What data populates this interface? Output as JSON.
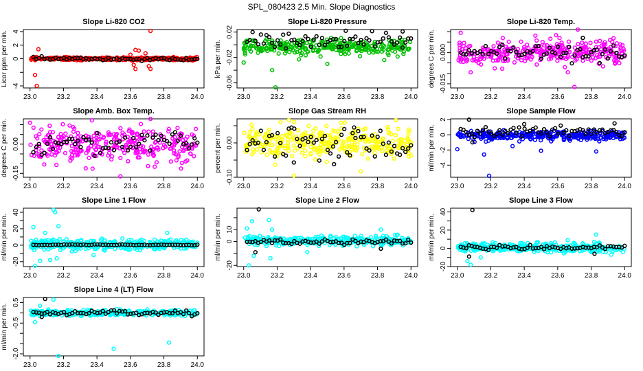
{
  "chart_data": {
    "title": "SPL_080423  2.5 Min. Slope Diagnostics",
    "type": "scatter",
    "xlim": [
      23.0,
      24.0
    ],
    "xticks": [
      "23.0",
      "23.2",
      "23.4",
      "23.6",
      "23.8",
      "24.0"
    ],
    "panels": [
      {
        "title": "Slope Li-820 CO2",
        "ylabel": "Licor ppm per min.",
        "ylim": [
          -4.3,
          4.3
        ],
        "yticks": [
          -4,
          -2,
          0,
          2,
          4
        ],
        "ytick_labels": [
          "-4",
          "",
          "0",
          "2",
          "4"
        ],
        "series": [
          {
            "name": "all",
            "color": "#ff0000",
            "center": 0,
            "spread": 0.12,
            "outliers": [
              [
                23.03,
                -2.4
              ],
              [
                23.04,
                -4.0
              ],
              [
                23.05,
                1.4
              ],
              [
                23.63,
                1.3
              ],
              [
                23.65,
                1.2
              ],
              [
                23.62,
                -0.9
              ],
              [
                23.63,
                -1.5
              ],
              [
                23.72,
                4.1
              ],
              [
                23.71,
                -1.1
              ],
              [
                23.72,
                -1.5
              ],
              [
                23.69,
                0.8
              ],
              [
                23.6,
                0.6
              ]
            ]
          },
          {
            "name": "selected",
            "color": "#000000",
            "center": 0,
            "spread": 0.12,
            "outliers": []
          }
        ]
      },
      {
        "title": "Slope Li-820 Pressure",
        "ylabel": "kPa per min.",
        "ylim": [
          -0.068,
          0.024
        ],
        "yticks": [
          -0.06,
          -0.04,
          -0.02,
          0,
          0.02
        ],
        "ytick_labels": [
          "-0.06",
          "",
          "-0.02",
          "",
          "0.02"
        ],
        "series": [
          {
            "name": "all",
            "color": "#00c000",
            "center": -0.003,
            "spread": 0.006,
            "outliers": [
              [
                23.17,
                -0.04
              ],
              [
                23.19,
                -0.067
              ],
              [
                23.5,
                -0.03
              ],
              [
                23.0,
                -0.028
              ],
              [
                23.33,
                -0.023
              ],
              [
                23.84,
                -0.024
              ]
            ]
          },
          {
            "name": "selected",
            "color": "#000000",
            "center": 0.006,
            "spread": 0.007,
            "outliers": [
              [
                23.61,
                0.022
              ],
              [
                23.95,
                0.021
              ]
            ]
          }
        ]
      },
      {
        "title": "Slope Li-820 Temp.",
        "ylabel": "degrees C per min.",
        "ylim": [
          -0.017,
          0.011
        ],
        "yticks": [
          -0.015,
          -0.01,
          -0.005,
          0,
          0.005,
          0.01
        ],
        "ytick_labels": [
          "-0.015",
          "",
          "",
          "0.000",
          "",
          ""
        ],
        "series": [
          {
            "name": "all",
            "color": "#ff00ff",
            "center": 0,
            "spread": 0.003,
            "outliers": [
              [
                23.7,
                -0.0165
              ],
              [
                23.02,
                0.0095
              ],
              [
                23.72,
                0.011
              ],
              [
                23.08,
                -0.0095
              ],
              [
                23.66,
                -0.0095
              ]
            ]
          },
          {
            "name": "selected",
            "color": "#000000",
            "center": 0,
            "spread": 0.002,
            "outliers": [
              [
                23.75,
                0.007
              ]
            ]
          }
        ]
      },
      {
        "title": "Slope Amb. Box Temp.",
        "ylabel": "degrees C per min.",
        "ylim": [
          -0.17,
          0.13
        ],
        "yticks": [
          -0.15,
          -0.1,
          -0.05,
          0,
          0.05,
          0.1
        ],
        "ytick_labels": [
          "-0.15",
          "",
          "",
          "0.00",
          "",
          ""
        ],
        "series": [
          {
            "name": "all",
            "color": "#ff00ff",
            "center": 0,
            "spread": 0.045,
            "outliers": [
              [
                23.54,
                -0.165
              ],
              [
                23.0,
                0.11
              ],
              [
                23.72,
                0.13
              ]
            ]
          },
          {
            "name": "selected",
            "color": "#000000",
            "center": 0.005,
            "spread": 0.03,
            "outliers": []
          }
        ]
      },
      {
        "title": "Slope Gas Stream RH",
        "ylabel": "percent per min.",
        "ylim": [
          -0.1,
          0.07
        ],
        "yticks": [
          -0.1,
          -0.05,
          0,
          0.05
        ],
        "ytick_labels": [
          "-0.10",
          "",
          "0.00",
          ""
        ],
        "series": [
          {
            "name": "all",
            "color": "#ffff00",
            "center": 0,
            "spread": 0.022,
            "outliers": [
              [
                23.3,
                -0.095
              ],
              [
                23.7,
                -0.083
              ],
              [
                23.27,
                0.066
              ],
              [
                23.91,
                0.066
              ]
            ]
          },
          {
            "name": "selected",
            "color": "#000000",
            "center": 0,
            "spread": 0.025,
            "outliers": [
              [
                23.66,
                0.045
              ],
              [
                23.3,
                -0.057
              ],
              [
                23.54,
                -0.062
              ]
            ]
          }
        ]
      },
      {
        "title": "Slope Sample Flow",
        "ylabel": "ml/min per min.",
        "ylim": [
          -5.6,
          2.1
        ],
        "yticks": [
          -4,
          -2,
          0,
          2
        ],
        "ytick_labels": [
          "-4",
          "-2",
          "0",
          "2"
        ],
        "series": [
          {
            "name": "all",
            "color": "#0000ff",
            "center": -0.1,
            "spread": 0.3,
            "outliers": [
              [
                23.19,
                -5.4
              ],
              [
                23.16,
                -2.6
              ],
              [
                23.5,
                -2.1
              ],
              [
                23.83,
                -2.2
              ],
              [
                23.0,
                -1.9
              ],
              [
                23.33,
                -1.5
              ]
            ]
          },
          {
            "name": "selected",
            "color": "#000000",
            "center": 0.4,
            "spread": 0.35,
            "outliers": [
              [
                23.07,
                2.0
              ],
              [
                23.4,
                1.4
              ],
              [
                23.94,
                1.5
              ],
              [
                23.09,
                -1.0
              ]
            ]
          }
        ]
      },
      {
        "title": "Slope Line 1 Flow",
        "ylabel": "ml/min per min.",
        "ylim": [
          -26,
          45
        ],
        "yticks": [
          -20,
          -10,
          0,
          10,
          20,
          30,
          40
        ],
        "ytick_labels": [
          "-20",
          "",
          "0",
          "",
          "20",
          "",
          "40"
        ],
        "series": [
          {
            "name": "all",
            "color": "#00ffff",
            "center": 1,
            "spread": 3,
            "outliers": [
              [
                23.14,
                43
              ],
              [
                23.15,
                40
              ],
              [
                23.02,
                22
              ],
              [
                23.17,
                23
              ],
              [
                23.03,
                -25
              ],
              [
                23.06,
                -19
              ],
              [
                23.12,
                -18
              ],
              [
                23.16,
                -16
              ],
              [
                23.38,
                -12
              ],
              [
                23.09,
                15
              ],
              [
                23.82,
                15
              ]
            ]
          },
          {
            "name": "selected",
            "color": "#000000",
            "center": 0.5,
            "spread": 0.3,
            "outliers": []
          }
        ]
      },
      {
        "title": "Slope Line 2 Flow",
        "ylabel": "ml/min per min.",
        "ylim": [
          -21,
          28
        ],
        "yticks": [
          -20,
          -10,
          0,
          10,
          20
        ],
        "ytick_labels": [
          "-20",
          "",
          "0",
          "10",
          ""
        ],
        "series": [
          {
            "name": "all",
            "color": "#00ffff",
            "center": 0.5,
            "spread": 2,
            "outliers": [
              [
                23.03,
                -20
              ],
              [
                23.05,
                17
              ],
              [
                23.15,
                18
              ],
              [
                23.17,
                10
              ],
              [
                23.16,
                -14
              ],
              [
                23.06,
                -12
              ],
              [
                23.38,
                -9
              ],
              [
                23.02,
                11
              ],
              [
                23.82,
                10
              ]
            ]
          },
          {
            "name": "selected",
            "color": "#000000",
            "center": 0,
            "spread": 1.2,
            "outliers": [
              [
                23.09,
                27
              ],
              [
                23.07,
                -9
              ],
              [
                23.82,
                -6
              ]
            ]
          }
        ]
      },
      {
        "title": "Slope Line 3 Flow",
        "ylabel": "ml/min per min.",
        "ylim": [
          -20,
          44
        ],
        "yticks": [
          -20,
          -10,
          0,
          10,
          20,
          30,
          40
        ],
        "ytick_labels": [
          "-20",
          "",
          "0",
          "",
          "20",
          "",
          "40"
        ],
        "series": [
          {
            "name": "all",
            "color": "#00ffff",
            "center": 1,
            "spread": 2.5,
            "outliers": [
              [
                23.08,
                -18
              ],
              [
                23.06,
                -14
              ],
              [
                23.14,
                -10
              ],
              [
                23.83,
                15
              ],
              [
                23.66,
                9
              ],
              [
                23.92,
                -7
              ]
            ]
          },
          {
            "name": "selected",
            "color": "#000000",
            "center": 0.8,
            "spread": 1.5,
            "outliers": [
              [
                23.09,
                42
              ],
              [
                23.07,
                -9
              ],
              [
                23.82,
                -6
              ]
            ]
          }
        ]
      },
      {
        "title": "Slope Line 4 (LT) Flow",
        "ylabel": "ml/min per min.",
        "ylim": [
          -2.1,
          0.75
        ],
        "yticks": [
          -2.0,
          -1.5,
          -1.0,
          -0.5,
          0,
          0.5
        ],
        "ytick_labels": [
          "-2.0",
          "",
          "",
          "-0.5",
          "",
          "0.5"
        ],
        "series": [
          {
            "name": "all",
            "color": "#00ffff",
            "center": 0,
            "spread": 0.07,
            "outliers": [
              [
                23.17,
                -2.1
              ],
              [
                23.5,
                -1.75
              ],
              [
                23.83,
                -1.45
              ],
              [
                23.03,
                -0.45
              ],
              [
                23.14,
                0.65
              ],
              [
                23.06,
                0.35
              ]
            ]
          },
          {
            "name": "selected",
            "color": "#000000",
            "center": 0,
            "spread": 0.06,
            "outliers": [
              [
                23.09,
                0.68
              ],
              [
                23.07,
                -0.2
              ]
            ]
          }
        ]
      }
    ]
  }
}
